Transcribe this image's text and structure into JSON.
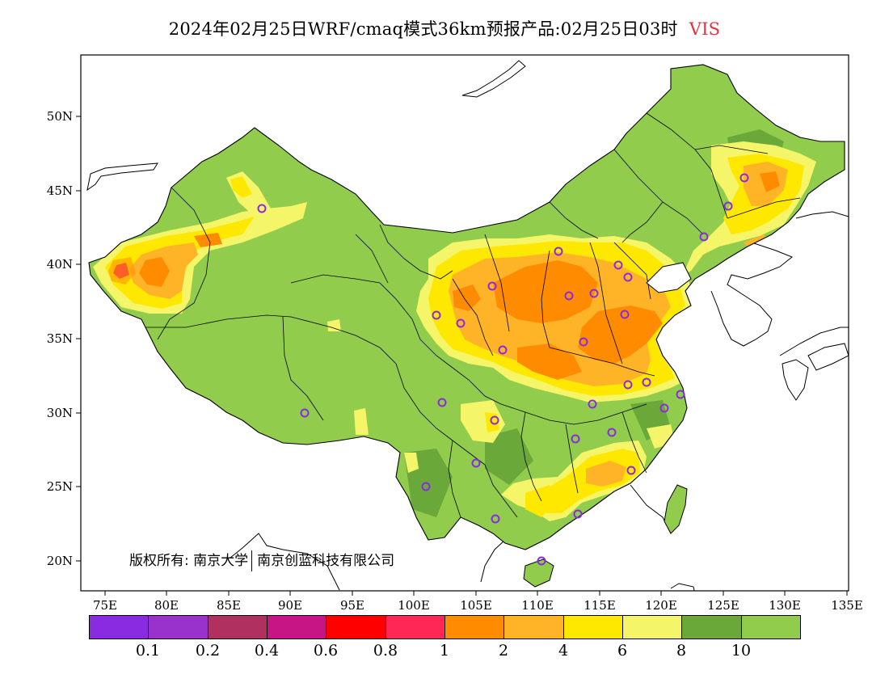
{
  "header": {
    "title": "2024年02月25日WRF/cmaq模式36km预报产品:02月25日03时",
    "variable": "VIS",
    "variable_color": "#e8303a"
  },
  "map": {
    "lat_labels": [
      "50N",
      "45N",
      "40N",
      "35N",
      "30N",
      "25N",
      "20N"
    ],
    "lon_labels": [
      "75E",
      "80E",
      "85E",
      "90E",
      "95E",
      "100E",
      "105E",
      "110E",
      "115E",
      "120E",
      "125E",
      "130E",
      "135E"
    ],
    "colors": {
      "land_good": "#92cc4c",
      "land_dark": "#6aa83a",
      "light_yellow": "#f5f56a",
      "yellow": "#ffe800",
      "light_orange": "#ffb428",
      "orange": "#ff8c00",
      "red_pink": "#ff2855",
      "station_marker": "#8a2be2"
    },
    "copyright_left": "版权所有: 南京大学",
    "copyright_right": "南京创蓝科技有限公司"
  },
  "legend": {
    "colors": [
      "#8a2be2",
      "#9932cc",
      "#b03060",
      "#c71585",
      "#ff0000",
      "#ff2855",
      "#ff8c00",
      "#ffb428",
      "#ffe800",
      "#f5f56a",
      "#6aa83a",
      "#92cc4c"
    ],
    "labels": [
      "0.1",
      "0.2",
      "0.4",
      "0.6",
      "0.8",
      "1",
      "2",
      "4",
      "6",
      "8",
      "10"
    ]
  }
}
